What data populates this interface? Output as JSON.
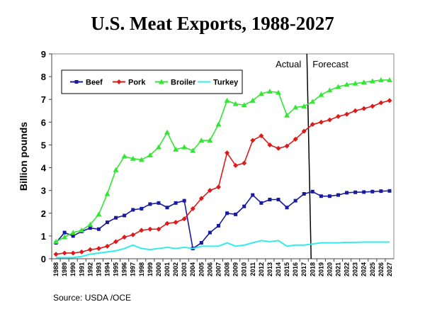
{
  "chart_data": {
    "type": "line",
    "title": "U.S. Meat Exports, 1988-2027",
    "xlabel": "",
    "ylabel": "Billion pounds",
    "ylim": [
      0,
      9
    ],
    "yticks": [
      "0",
      "1",
      "2",
      "3",
      "4",
      "5",
      "6",
      "7",
      "8",
      "9"
    ],
    "categories": [
      "1988",
      "1989",
      "1990",
      "1991",
      "1992",
      "1993",
      "1994",
      "1995",
      "1996",
      "1997",
      "1998",
      "1999",
      "2000",
      "2001",
      "2002",
      "2003",
      "2004",
      "2005",
      "2006",
      "2007",
      "2008",
      "2009",
      "2010",
      "2011",
      "2012",
      "2013",
      "2014",
      "2015",
      "2016",
      "2017",
      "2018",
      "2019",
      "2020",
      "2021",
      "2022",
      "2023",
      "2024",
      "2025",
      "2026",
      "2027"
    ],
    "grid": false,
    "legend_position": "top-left, inside plot",
    "series": [
      {
        "name": "Beef",
        "color": "#1a1aa0",
        "marker": "square",
        "values": [
          0.7,
          1.15,
          1.0,
          1.2,
          1.35,
          1.3,
          1.6,
          1.8,
          1.9,
          2.15,
          2.2,
          2.4,
          2.45,
          2.25,
          2.45,
          2.55,
          0.45,
          0.7,
          1.15,
          1.45,
          2.0,
          1.95,
          2.3,
          2.8,
          2.45,
          2.6,
          2.6,
          2.25,
          2.55,
          2.85,
          2.95,
          2.75,
          2.75,
          2.8,
          2.9,
          2.92,
          2.93,
          2.95,
          2.97,
          2.98
        ]
      },
      {
        "name": "Pork",
        "color": "#dd1a1a",
        "marker": "diamond",
        "values": [
          0.2,
          0.25,
          0.25,
          0.3,
          0.4,
          0.45,
          0.55,
          0.75,
          0.95,
          1.05,
          1.25,
          1.3,
          1.3,
          1.55,
          1.6,
          1.75,
          2.2,
          2.65,
          3.0,
          3.15,
          4.65,
          4.1,
          4.2,
          5.2,
          5.4,
          5.0,
          4.85,
          4.95,
          5.25,
          5.6,
          5.9,
          6.0,
          6.1,
          6.25,
          6.35,
          6.5,
          6.6,
          6.7,
          6.85,
          6.95
        ]
      },
      {
        "name": "Broiler",
        "color": "#33e633",
        "marker": "triangle",
        "values": [
          0.75,
          0.95,
          1.15,
          1.25,
          1.5,
          1.95,
          2.85,
          3.9,
          4.5,
          4.4,
          4.35,
          4.55,
          4.9,
          5.55,
          4.8,
          4.9,
          4.75,
          5.2,
          5.2,
          5.9,
          6.95,
          6.8,
          6.75,
          6.95,
          7.25,
          7.35,
          7.3,
          6.3,
          6.65,
          6.7,
          6.9,
          7.2,
          7.4,
          7.55,
          7.65,
          7.7,
          7.75,
          7.8,
          7.85,
          7.85
        ]
      },
      {
        "name": "Turkey",
        "color": "#33ecec",
        "marker": "none",
        "values": [
          0.05,
          0.05,
          0.05,
          0.1,
          0.2,
          0.25,
          0.3,
          0.35,
          0.45,
          0.6,
          0.45,
          0.4,
          0.45,
          0.5,
          0.45,
          0.5,
          0.45,
          0.55,
          0.55,
          0.55,
          0.7,
          0.55,
          0.6,
          0.7,
          0.8,
          0.75,
          0.8,
          0.55,
          0.6,
          0.6,
          0.65,
          0.7,
          0.7,
          0.7,
          0.72,
          0.72,
          0.73,
          0.73,
          0.73,
          0.73
        ]
      }
    ],
    "annotations": {
      "actual_label": "Actual",
      "forecast_label": "Forecast",
      "divider_after_category": "2017"
    }
  },
  "source_note": "Source: USDA /OCE"
}
